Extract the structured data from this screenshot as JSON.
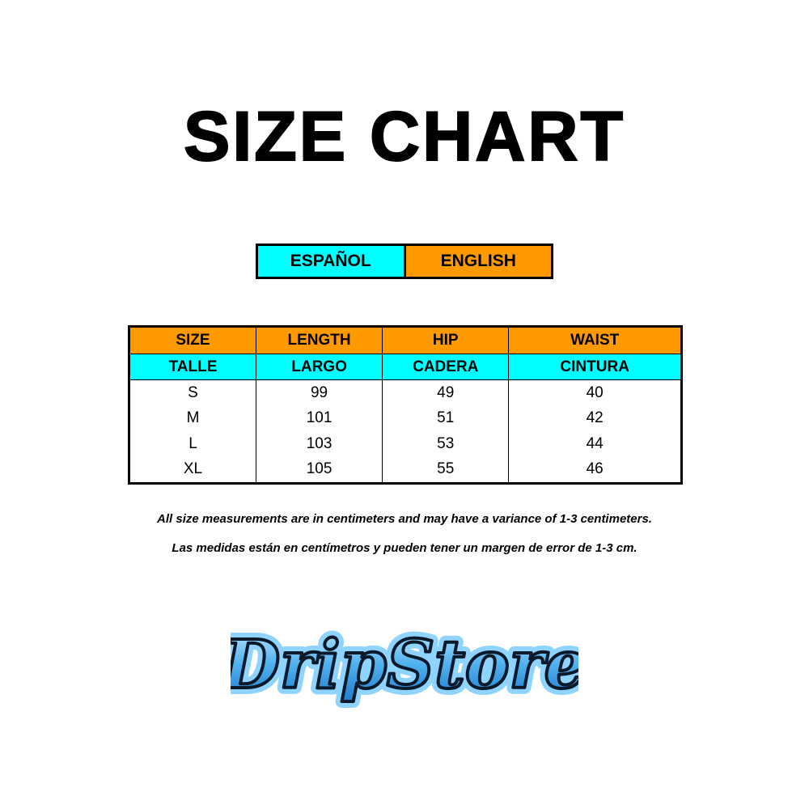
{
  "title": "SIZE CHART",
  "languages": {
    "spanish": "ESPAÑOL",
    "english": "ENGLISH"
  },
  "colors": {
    "english_header": "#ff9900",
    "spanish_header": "#00ffff"
  },
  "table": {
    "headers_en": [
      "SIZE",
      "LENGTH",
      "HIP",
      "WAIST"
    ],
    "headers_es": [
      "TALLE",
      "LARGO",
      "CADERA",
      "CINTURA"
    ],
    "rows": [
      [
        "S",
        "99",
        "49",
        "40"
      ],
      [
        "M",
        "101",
        "51",
        "42"
      ],
      [
        "L",
        "103",
        "53",
        "44"
      ],
      [
        "XL",
        "105",
        "55",
        "46"
      ]
    ]
  },
  "notes": {
    "english": "All size measurements are in centimeters and may have a variance of 1-3 centimeters.",
    "spanish": "Las medidas están en centímetros y pueden tener un margen de error de 1-3 cm."
  },
  "logo": {
    "text": "DripStore"
  }
}
